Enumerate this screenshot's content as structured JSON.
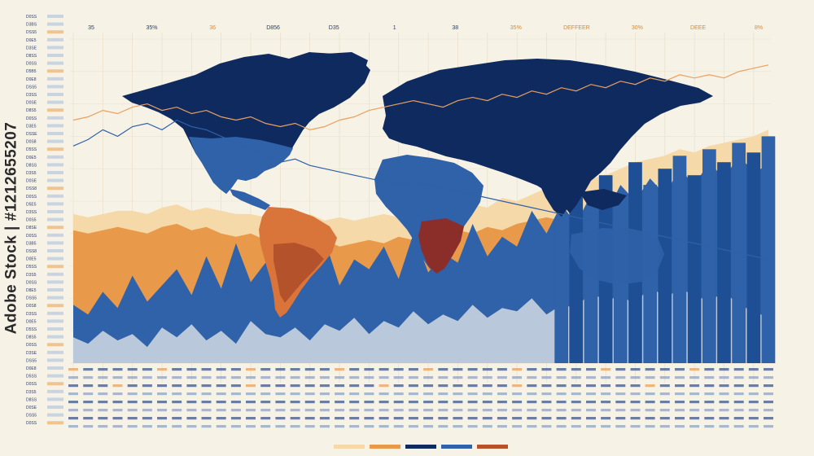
{
  "watermark": {
    "text": "Adobe Stock | #1212655207",
    "color": "#2a2a2a"
  },
  "colors": {
    "background": "#f7f2e6",
    "navy": "#0f2a5f",
    "blue": "#2f62a8",
    "light_blue": "#b9c9db",
    "orange": "#e89a4a",
    "peach": "#f5d9a8",
    "rust": "#b4522c",
    "maroon": "#8b2e2a",
    "axis_text": "#2b3f6b",
    "accent_text": "#e08a2e"
  },
  "chart_data": {
    "type": "area",
    "x_count": 48,
    "ylim": [
      0,
      100
    ],
    "grid": true,
    "top_tick_labels": [
      "35",
      "35%",
      "36",
      "D856",
      "D35",
      "1",
      "38",
      "35%",
      "DEFFEER",
      "30%",
      "DEEE",
      "8%"
    ],
    "top_tick_colors": [
      "#2b3f6b",
      "#2b3f6b",
      "#e08a2e",
      "#2b3f6b",
      "#2b3f6b",
      "#2b3f6b",
      "#2b3f6b",
      "#e08a2e",
      "#e08a2e",
      "#e08a2e",
      "#e08a2e",
      "#e08a2e"
    ],
    "left_labels": [
      "D0SS",
      "D3BS",
      "DSS5",
      "D0E5",
      "D3SE",
      "D8SS",
      "D0SS",
      "D5B5",
      "D0E8",
      "DSS5",
      "D3SS",
      "D0SE",
      "D8S5",
      "D0SS",
      "D3E5",
      "DSSE",
      "D0S8",
      "D5SS",
      "D0E5",
      "D8SS",
      "D3S5",
      "D0SE",
      "DSS8",
      "D0SS",
      "D5E5",
      "D3SS",
      "D0S5",
      "D8SE",
      "D0SS",
      "D3B5",
      "DSS8",
      "D0E5",
      "D5SS",
      "D3S5",
      "D0SS",
      "D8E5",
      "DSS5",
      "D0S8",
      "D3SS",
      "D0E5",
      "D5SS",
      "D8S5",
      "D0SS",
      "D3SE",
      "DSS5",
      "D0E8",
      "D5SS",
      "D0SS",
      "D3S5",
      "D8SS",
      "D0SE",
      "DSS5",
      "D0SS"
    ],
    "series": [
      {
        "color": "#f5d9a8",
        "values": [
          46,
          45,
          46,
          47,
          47,
          46,
          48,
          49,
          47,
          48,
          47,
          46,
          46,
          45,
          46,
          45,
          46,
          44,
          45,
          44,
          45,
          46,
          45,
          47,
          46,
          48,
          47,
          49,
          48,
          51,
          50,
          52,
          54,
          55,
          56,
          57,
          58,
          60,
          62,
          63,
          64,
          66,
          65,
          67,
          68,
          69,
          70,
          72
        ]
      },
      {
        "color": "#e89a4a",
        "values": [
          41,
          40,
          41,
          42,
          41,
          40,
          42,
          43,
          41,
          42,
          40,
          39,
          40,
          38,
          39,
          38,
          37,
          38,
          36,
          37,
          38,
          37,
          39,
          38,
          40,
          39,
          41,
          40,
          42,
          41,
          43,
          44,
          45,
          44,
          46,
          47,
          48,
          49,
          51,
          52,
          53,
          55,
          54,
          56,
          57,
          58,
          59,
          61
        ]
      },
      {
        "color": "#2f62a8",
        "values": [
          18,
          15,
          22,
          17,
          27,
          19,
          24,
          29,
          21,
          33,
          23,
          37,
          25,
          31,
          22,
          35,
          27,
          38,
          24,
          32,
          29,
          36,
          26,
          40,
          28,
          34,
          31,
          43,
          33,
          39,
          36,
          47,
          40,
          49,
          43,
          52,
          46,
          55,
          50,
          57,
          52,
          60,
          55,
          62,
          57,
          64,
          59,
          61
        ]
      },
      {
        "color": "#b9c9db",
        "values": [
          8,
          6,
          10,
          7,
          9,
          5,
          11,
          8,
          12,
          7,
          10,
          6,
          13,
          9,
          8,
          11,
          7,
          12,
          10,
          14,
          9,
          13,
          11,
          16,
          12,
          15,
          13,
          18,
          14,
          17,
          16,
          20,
          15,
          18,
          17,
          22,
          19,
          21,
          18,
          24,
          20,
          23,
          21,
          19,
          22,
          18,
          16,
          14
        ]
      }
    ],
    "lines": [
      {
        "color": "#e8a060",
        "values": [
          75,
          76,
          78,
          77,
          79,
          80,
          78,
          79,
          77,
          78,
          76,
          75,
          76,
          74,
          73,
          74,
          72,
          73,
          75,
          76,
          78,
          79,
          80,
          81,
          80,
          79,
          81,
          82,
          81,
          83,
          82,
          84,
          83,
          85,
          84,
          86,
          85,
          87,
          86,
          88,
          87,
          89,
          88,
          89,
          88,
          90,
          91,
          92
        ]
      },
      {
        "color": "#2f62a8",
        "values": [
          67,
          69,
          72,
          70,
          73,
          74,
          72,
          75,
          73,
          72,
          70,
          68,
          66,
          64,
          62,
          63,
          61,
          60,
          59,
          58,
          57,
          56,
          55,
          56,
          55,
          54,
          53,
          52,
          51,
          50,
          49,
          48,
          47,
          46,
          45,
          44,
          43,
          42,
          41,
          40,
          39,
          38,
          37,
          36,
          35,
          34,
          33,
          32
        ]
      }
    ],
    "bars": {
      "start_index": 33,
      "color": "#2f62a8",
      "values": [
        44,
        52,
        46,
        58,
        50,
        62,
        55,
        60,
        64,
        58,
        66,
        62,
        68,
        65,
        70
      ]
    },
    "bottom_rows": 8
  }
}
